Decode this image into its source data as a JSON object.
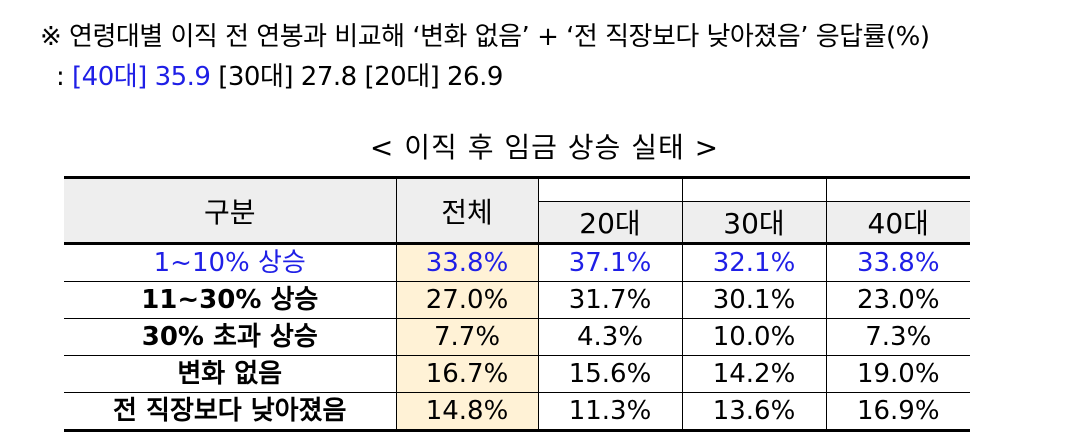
{
  "note": {
    "line1": "※ 연령대별 이직 전 연봉과 비교해 ‘변화 없음’ + ‘전 직장보다 낮아졌음’ 응답률(%)",
    "line2_prefix": " : ",
    "line2_highlight": "[40대] 35.9",
    "line2_rest": " [30대] 27.8 [20대] 26.9"
  },
  "table_title": "< 이직 후 임금 상승 실태 >",
  "table": {
    "headers": [
      "구분",
      "전체",
      "20대",
      "30대",
      "40대"
    ],
    "rows": [
      {
        "label": "1~10% 상승",
        "values": [
          "33.8%",
          "37.1%",
          "32.1%",
          "33.8%"
        ]
      },
      {
        "label": "11~30% 상승",
        "values": [
          "27.0%",
          "31.7%",
          "30.1%",
          "23.0%"
        ]
      },
      {
        "label": "30% 초과 상승",
        "values": [
          "7.7%",
          "4.3%",
          "10.0%",
          "7.3%"
        ]
      },
      {
        "label": "변화 없음",
        "values": [
          "16.7%",
          "15.6%",
          "14.2%",
          "19.0%"
        ]
      },
      {
        "label": "전 직장보다 낮아졌음",
        "values": [
          "14.8%",
          "11.3%",
          "13.6%",
          "16.9%"
        ]
      }
    ]
  },
  "colors": {
    "highlight_blue": "#1f1fe6",
    "total_column_bg": "#fff2d6",
    "header_bg": "#eeeeee"
  }
}
